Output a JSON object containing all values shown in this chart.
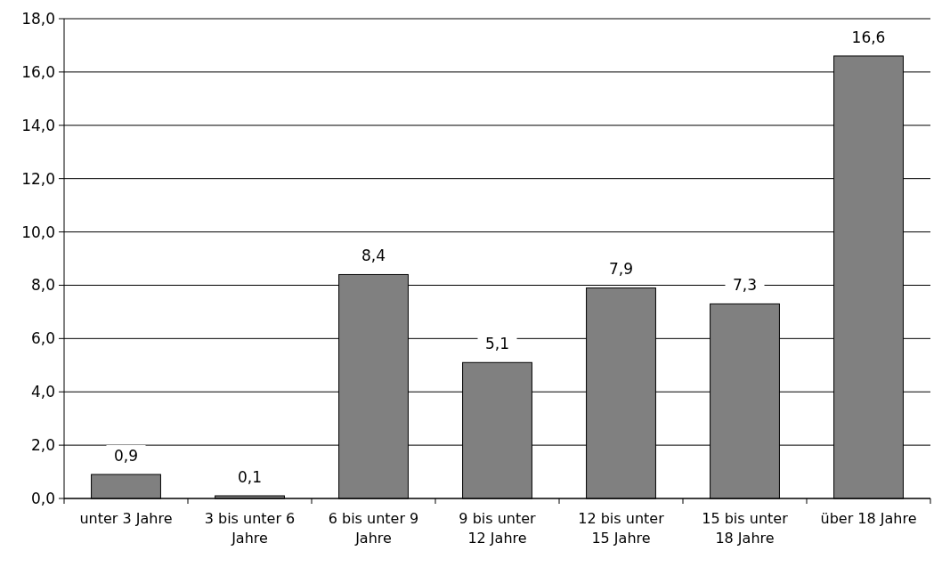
{
  "chart_data": {
    "type": "bar",
    "categories": [
      "unter 3 Jahre",
      "3 bis unter 6 Jahre",
      "6 bis unter 9 Jahre",
      "9 bis unter 12 Jahre",
      "12 bis unter 15 Jahre",
      "15 bis unter 18 Jahre",
      "über 18 Jahre"
    ],
    "values": [
      0.9,
      0.1,
      8.4,
      5.1,
      7.9,
      7.3,
      16.6
    ],
    "value_labels": [
      "0,9",
      "0,1",
      "8,4",
      "5,1",
      "7,9",
      "7,3",
      "16,6"
    ],
    "color": "#808080",
    "ylim": [
      0,
      18
    ],
    "yticks": [
      {
        "value": 0,
        "label": "0,0"
      },
      {
        "value": 2,
        "label": "2,0"
      },
      {
        "value": 4,
        "label": "4,0"
      },
      {
        "value": 6,
        "label": "6,0"
      },
      {
        "value": 8,
        "label": "8,0"
      },
      {
        "value": 10,
        "label": "10,0"
      },
      {
        "value": 12,
        "label": "12,0"
      },
      {
        "value": 14,
        "label": "14,0"
      },
      {
        "value": 16,
        "label": "16,0"
      },
      {
        "value": 18,
        "label": "18,0"
      }
    ],
    "grid": "y"
  }
}
